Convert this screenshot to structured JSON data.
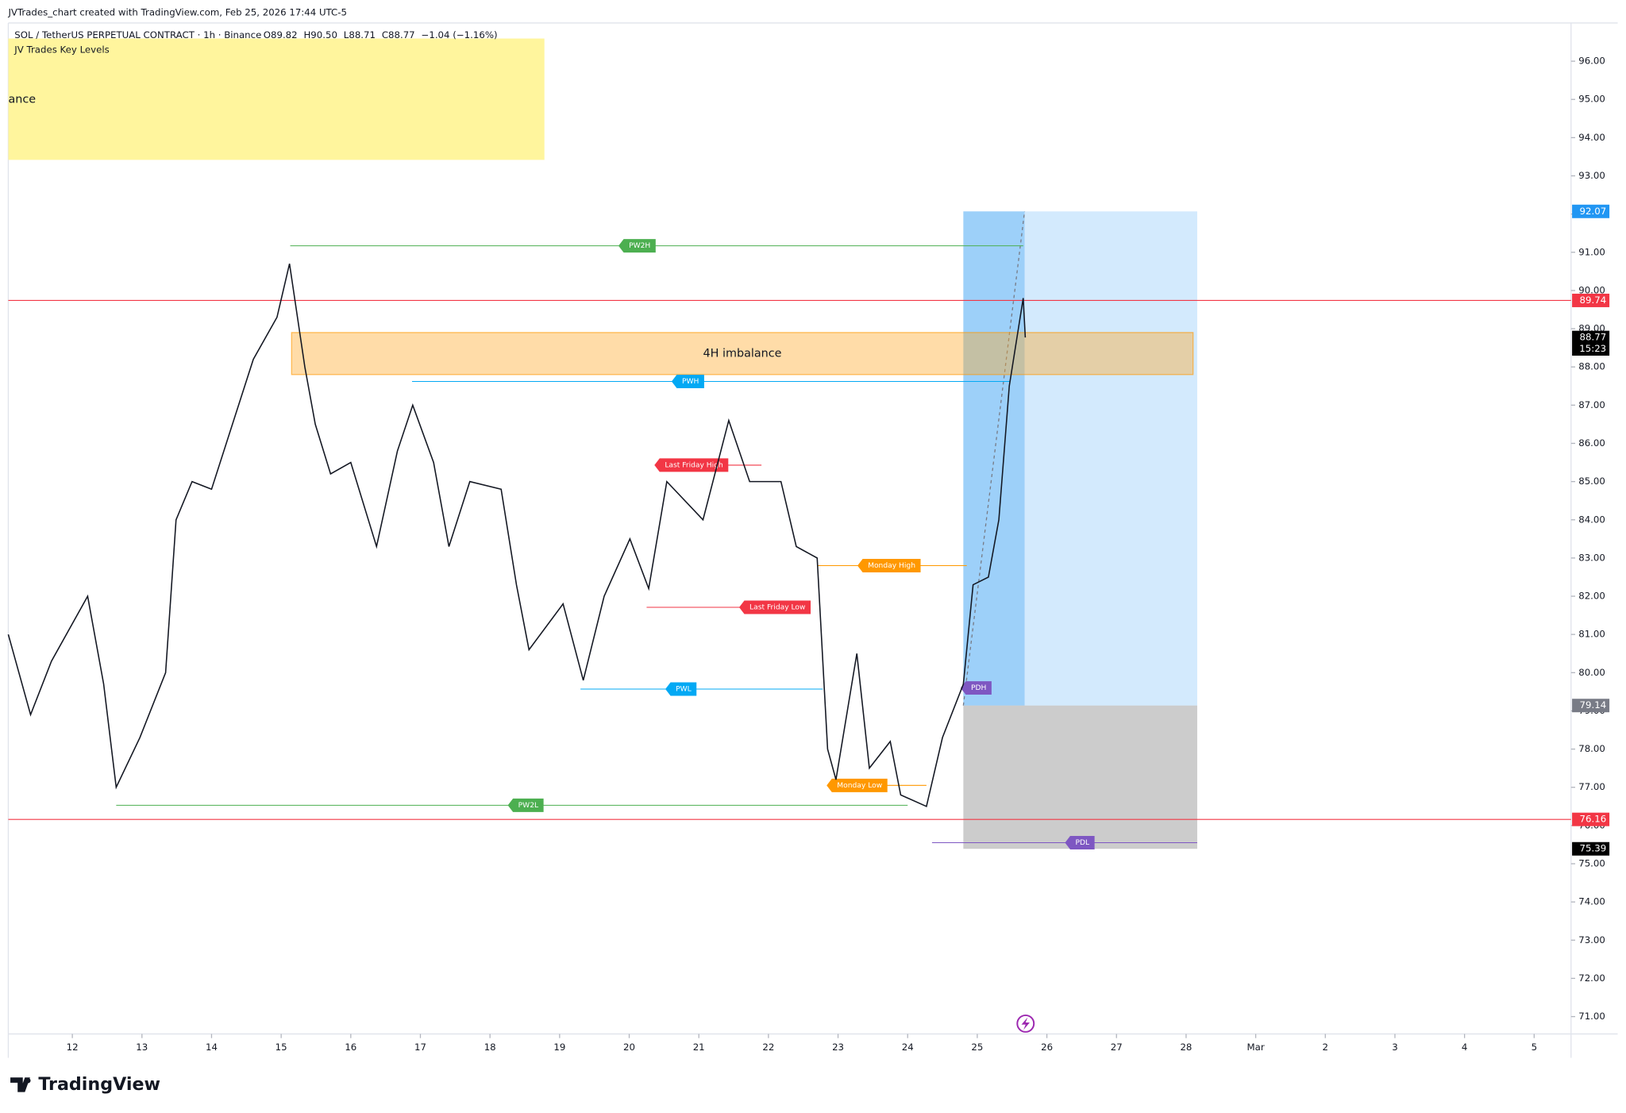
{
  "header": {
    "watermark": "JVTrades_chart created with TradingView.com, Feb 25, 2026 17:44 UTC-5",
    "symbol": "SOL / TetherUS PERPETUAL CONTRACT · 1h · Binance",
    "ohlc": [
      "O89.82",
      "H90.50",
      "L88.71",
      "C88.77",
      "−1.04 (−1.16%)"
    ],
    "indicator": "JV Trades Key Levels",
    "indicator_cut": "ance"
  },
  "footer": {
    "brand": "TradingView"
  },
  "chart_data": {
    "type": "line",
    "x": [
      11.08,
      11.4,
      11.7,
      12.22,
      12.45,
      12.63,
      12.97,
      13.34,
      13.49,
      13.72,
      14.0,
      14.3,
      14.6,
      14.94,
      15.12,
      15.34,
      15.49,
      15.71,
      16.0,
      16.37,
      16.67,
      16.89,
      17.19,
      17.41,
      17.71,
      18.16,
      18.38,
      18.56,
      19.05,
      19.34,
      19.64,
      20.01,
      20.28,
      20.54,
      21.06,
      21.43,
      21.73,
      22.18,
      22.4,
      22.7,
      22.85,
      22.97,
      23.27,
      23.45,
      23.75,
      23.9,
      24.27,
      24.5,
      24.8,
      24.94,
      25.16,
      25.31,
      25.46,
      25.66,
      25.69
    ],
    "series": [
      {
        "color": "#131722",
        "values": [
          81.0,
          78.9,
          80.3,
          82.0,
          79.7,
          77.0,
          78.3,
          80.0,
          84.0,
          85.0,
          84.8,
          86.5,
          88.2,
          89.3,
          90.7,
          88.0,
          86.5,
          85.2,
          85.5,
          83.3,
          85.8,
          87.0,
          85.5,
          83.3,
          85.0,
          84.8,
          82.3,
          80.6,
          81.8,
          79.8,
          82.0,
          83.5,
          82.2,
          85.0,
          84.0,
          86.6,
          85.0,
          85.0,
          83.3,
          83.0,
          78.0,
          77.2,
          80.5,
          77.5,
          78.2,
          76.8,
          76.5,
          78.3,
          79.7,
          82.3,
          82.5,
          84.0,
          87.5,
          89.8,
          88.77
        ]
      }
    ],
    "xlim": [
      11.08,
      33.53
    ],
    "ylim": [
      70.6,
      97
    ],
    "xticks": [
      12,
      13,
      14,
      15,
      16,
      17,
      18,
      19,
      20,
      21,
      22,
      23,
      24,
      25,
      26,
      27,
      28,
      {
        "value": 29,
        "label": "Mar"
      },
      {
        "value": 30,
        "label": "2"
      },
      {
        "value": 31,
        "label": "3"
      },
      {
        "value": 32,
        "label": "4"
      },
      {
        "value": 33,
        "label": "5"
      }
    ],
    "yticks": [
      {
        "value": 71,
        "label": "71.00"
      },
      {
        "value": 72,
        "label": "72.00"
      },
      {
        "value": 73,
        "label": "73.00"
      },
      {
        "value": 74,
        "label": "74.00"
      },
      {
        "value": 75,
        "label": "75.00"
      },
      {
        "value": 76,
        "label": "76.00"
      },
      {
        "value": 77,
        "label": "77.00"
      },
      {
        "value": 78,
        "label": "78.00"
      },
      {
        "value": 79,
        "label": "79.00"
      },
      {
        "value": 80,
        "label": "80.00"
      },
      {
        "value": 81,
        "label": "81.00"
      },
      {
        "value": 82,
        "label": "82.00"
      },
      {
        "value": 83,
        "label": "83.00"
      },
      {
        "value": 84,
        "label": "84.00"
      },
      {
        "value": 85,
        "label": "85.00"
      },
      {
        "value": 86,
        "label": "86.00"
      },
      {
        "value": 87,
        "label": "87.00"
      },
      {
        "value": 88,
        "label": "88.00"
      },
      {
        "value": 89,
        "label": "89.00"
      },
      {
        "value": 90,
        "label": "90.00"
      },
      {
        "value": 91,
        "label": "91.00"
      },
      {
        "value": 92,
        "label": "92.00"
      },
      {
        "value": 93,
        "label": "93.00"
      },
      {
        "value": 94,
        "label": "94.00"
      },
      {
        "value": 95,
        "label": "95.00"
      },
      {
        "value": 96,
        "label": "96.00"
      }
    ],
    "levels": [
      {
        "label": "PW2H",
        "value": 91.17,
        "start": 15.13,
        "end": 25.66,
        "at": 20.15,
        "color": "#4caf50"
      },
      {
        "label": "PWH",
        "value": 87.62,
        "start": 16.88,
        "end": 25.47,
        "at": 20.88,
        "color": "#03a9f4"
      },
      {
        "label": "Last Friday High",
        "value": 85.43,
        "start": 20.5,
        "end": 21.9,
        "at": 20.93,
        "color": "#f23645"
      },
      {
        "label": "Monday High",
        "value": 82.8,
        "start": 22.7,
        "end": 24.85,
        "at": 23.77,
        "color": "#ff9800"
      },
      {
        "label": "Last Friday Low",
        "value": 81.71,
        "start": 20.25,
        "end": 22.6,
        "at": 22.13,
        "color": "#f23645"
      },
      {
        "label": "PWL",
        "value": 79.57,
        "start": 19.3,
        "end": 22.78,
        "at": 20.78,
        "color": "#03a9f4"
      },
      {
        "label": "Monday Low",
        "value": 77.05,
        "start": 22.88,
        "end": 24.27,
        "at": 23.31,
        "color": "#ff9800"
      },
      {
        "label": "PW2L",
        "value": 76.53,
        "start": 12.63,
        "end": 24.0,
        "at": 18.55,
        "color": "#4caf50"
      },
      {
        "label": "PDH",
        "value": 79.6,
        "start": 24.8,
        "end": 24.8,
        "at": 25.02,
        "color": "#7e57c2"
      },
      {
        "label": "PDL",
        "value": 75.55,
        "start": 24.35,
        "end": 28.16,
        "at": 26.51,
        "color": "#7e57c2"
      }
    ],
    "hlines": [
      {
        "value": 89.74,
        "color": "#f23645"
      },
      {
        "value": 76.16,
        "color": "#f23645"
      }
    ],
    "imbalance": {
      "label": "4H imbalance",
      "low": 87.8,
      "high": 88.9,
      "start": 15.15,
      "end": 28.1
    },
    "position": {
      "target": 92.07,
      "entry": 79.14,
      "stop": 75.39,
      "start": 24.8,
      "mid": 25.68,
      "end": 28.16
    },
    "last_price": {
      "value": 88.77,
      "countdown": "15:23"
    }
  }
}
